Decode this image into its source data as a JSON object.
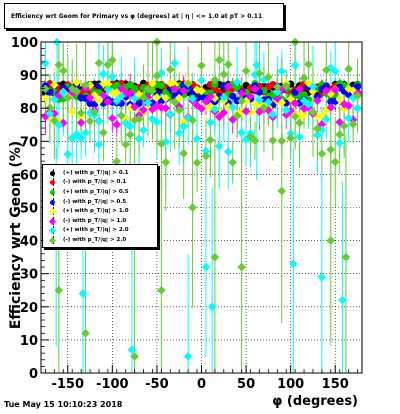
{
  "title": "Efficiency wrt Geom for Primary vs φ (degrees) at | η | <= 1.0 at pT > 0.11",
  "timestamp": "Tue May 15 10:10:23 2018",
  "chart_data": {
    "type": "scatter",
    "xlabel": "φ (degrees)",
    "ylabel": "Efficiency wrt Geom (%)",
    "xlim": [
      -180,
      180
    ],
    "ylim": [
      0,
      100
    ],
    "xticks": [
      -150,
      -100,
      -50,
      0,
      50,
      100,
      150
    ],
    "yticks": [
      0,
      10,
      20,
      30,
      40,
      50,
      60,
      70,
      80,
      90,
      100
    ],
    "grid": true,
    "legend_position": "left-middle",
    "series": [
      {
        "name": "(+) with p_T/|q| > 0.1",
        "color": "#000000",
        "marker": "circle",
        "base": 86,
        "spread": 1.5,
        "err": 1.0
      },
      {
        "name": "(-) with p_T/|q| > 0.1",
        "color": "#ff0000",
        "marker": "circle",
        "base": 86,
        "spread": 1.5,
        "err": 1.0
      },
      {
        "name": "(+) with p_T/|q| > 0.5",
        "color": "#00cc00",
        "marker": "circle",
        "base": 85,
        "spread": 2.5,
        "err": 1.5
      },
      {
        "name": "(-) with p_T/|q| > 0.5",
        "color": "#0000ff",
        "marker": "circle",
        "base": 84,
        "spread": 3.0,
        "err": 2.0
      },
      {
        "name": "(+) with p_T/|q| > 1.0",
        "color": "#ffff00",
        "marker": "diamond",
        "base": 82,
        "spread": 6.0,
        "err": 3.5
      },
      {
        "name": "(-) with p_T/|q| > 1.0",
        "color": "#ff00ff",
        "marker": "diamond",
        "base": 81,
        "spread": 6.0,
        "err": 4.0
      },
      {
        "name": "(+) with p_T/|q| > 2.0",
        "color": "#00ffff",
        "marker": "diamond",
        "base": 80,
        "spread": 14.0,
        "err": 9.0
      },
      {
        "name": "(-) with p_T/|q| > 2.0",
        "color": "#66cc33",
        "marker": "diamond",
        "base": 79,
        "spread": 16.0,
        "err": 10.0
      }
    ],
    "outliers": [
      {
        "series": 6,
        "x": -162,
        "y": 100
      },
      {
        "series": 6,
        "x": -163,
        "y": 38
      },
      {
        "series": 6,
        "x": -133,
        "y": 24
      },
      {
        "series": 6,
        "x": -115,
        "y": 76
      },
      {
        "series": 6,
        "x": -78,
        "y": 7
      },
      {
        "series": 6,
        "x": -15,
        "y": 5
      },
      {
        "series": 6,
        "x": 5,
        "y": 32
      },
      {
        "series": 6,
        "x": 12,
        "y": 20
      },
      {
        "series": 6,
        "x": 62,
        "y": 93
      },
      {
        "series": 6,
        "x": 103,
        "y": 33
      },
      {
        "series": 6,
        "x": 135,
        "y": 29
      },
      {
        "series": 6,
        "x": 158,
        "y": 22
      },
      {
        "series": 7,
        "x": -160,
        "y": 25
      },
      {
        "series": 7,
        "x": -130,
        "y": 12
      },
      {
        "series": 7,
        "x": -75,
        "y": 5
      },
      {
        "series": 7,
        "x": -45,
        "y": 25
      },
      {
        "series": 7,
        "x": -50,
        "y": 100
      },
      {
        "series": 7,
        "x": -10,
        "y": 50
      },
      {
        "series": 7,
        "x": 15,
        "y": 35
      },
      {
        "series": 7,
        "x": 45,
        "y": 32
      },
      {
        "series": 7,
        "x": 105,
        "y": 100
      },
      {
        "series": 7,
        "x": 145,
        "y": 40
      },
      {
        "series": 7,
        "x": 162,
        "y": 35
      },
      {
        "series": 7,
        "x": 90,
        "y": 55
      }
    ]
  }
}
